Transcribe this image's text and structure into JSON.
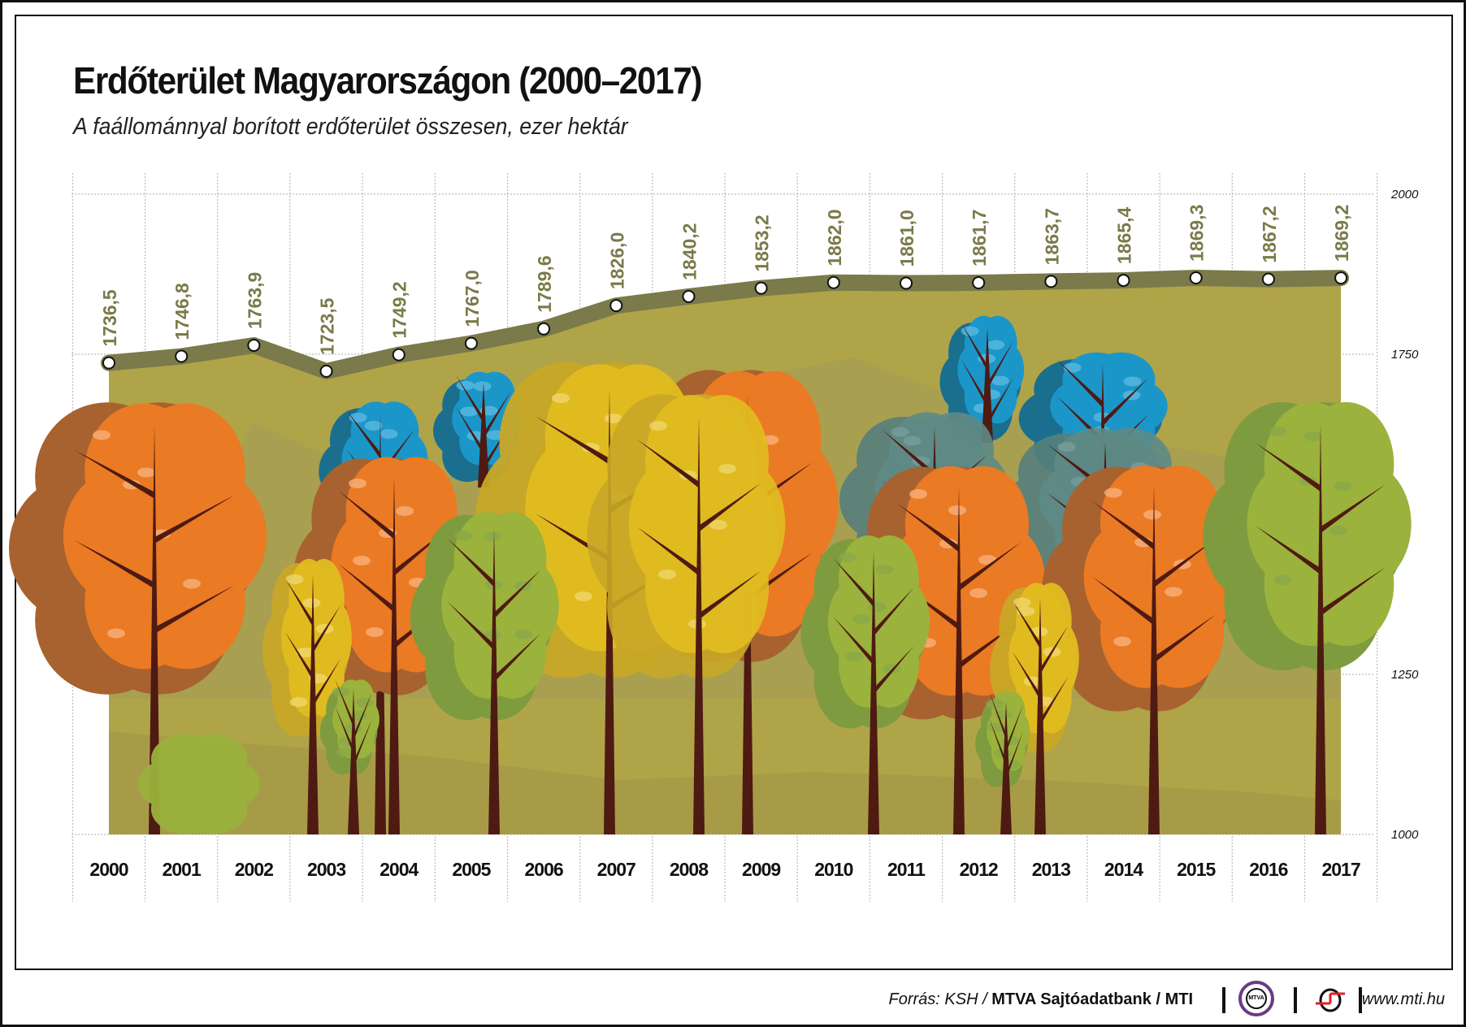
{
  "header": {
    "title": "Erdőterület Magyarországon (2000–2017)",
    "subtitle": "A faállománnyal borított erdőterület összesen, ezer hektár"
  },
  "footer": {
    "source_prefix": "Forrás: KSH / ",
    "source_bold": "MTVA Sajtóadatbank / MTI",
    "mtva_logo_text": "MTVA",
    "url": "www.mti.hu"
  },
  "colors": {
    "area_fill": "#b0a449",
    "line": "#7a7a4a",
    "value_label": "#7a7a4a",
    "marker_fill": "#ffffff",
    "trunk": "#4e1a12",
    "orange": "#ea7a24",
    "orange_dark": "#a8622f",
    "yellow": "#e2bd20",
    "green": "#9bb23c",
    "green_dark": "#7f9b3f",
    "blue": "#1b96c9",
    "blue_dark": "#1a6f8f",
    "teal_shadow": "#5f8a86",
    "grid": "#bbbbbb",
    "mtva_purple": "#6b3a86",
    "mti_red": "#e0202a"
  },
  "chart_data": {
    "type": "area",
    "title": "Erdőterület Magyarországon (2000–2017)",
    "subtitle": "A faállománnyal borított erdőterület összesen, ezer hektár",
    "xlabel": "",
    "ylabel": "ezer hektár",
    "categories": [
      "2000",
      "2001",
      "2002",
      "2003",
      "2004",
      "2005",
      "2006",
      "2007",
      "2008",
      "2009",
      "2010",
      "2011",
      "2012",
      "2013",
      "2014",
      "2015",
      "2016",
      "2017"
    ],
    "values": [
      1736.5,
      1746.8,
      1763.9,
      1723.5,
      1749.2,
      1767.0,
      1789.6,
      1826.0,
      1840.2,
      1853.2,
      1862.0,
      1861.0,
      1861.7,
      1863.7,
      1865.4,
      1869.3,
      1867.2,
      1869.2
    ],
    "value_labels": [
      "1736,5",
      "1746,8",
      "1763,9",
      "1723,5",
      "1749,2",
      "1767,0",
      "1789,6",
      "1826,0",
      "1840,2",
      "1853,2",
      "1862,0",
      "1861,0",
      "1861,7",
      "1863,7",
      "1865,4",
      "1869,3",
      "1867,2",
      "1869,2"
    ],
    "ylim": [
      1000,
      2000
    ],
    "yticks": [
      1000,
      1250,
      1750,
      2000
    ],
    "ytick_labels": [
      "1000",
      "1250",
      "1750",
      "2000"
    ],
    "grid": true,
    "legend": null,
    "decoration": "autumn trees illustration overlaid on area"
  }
}
